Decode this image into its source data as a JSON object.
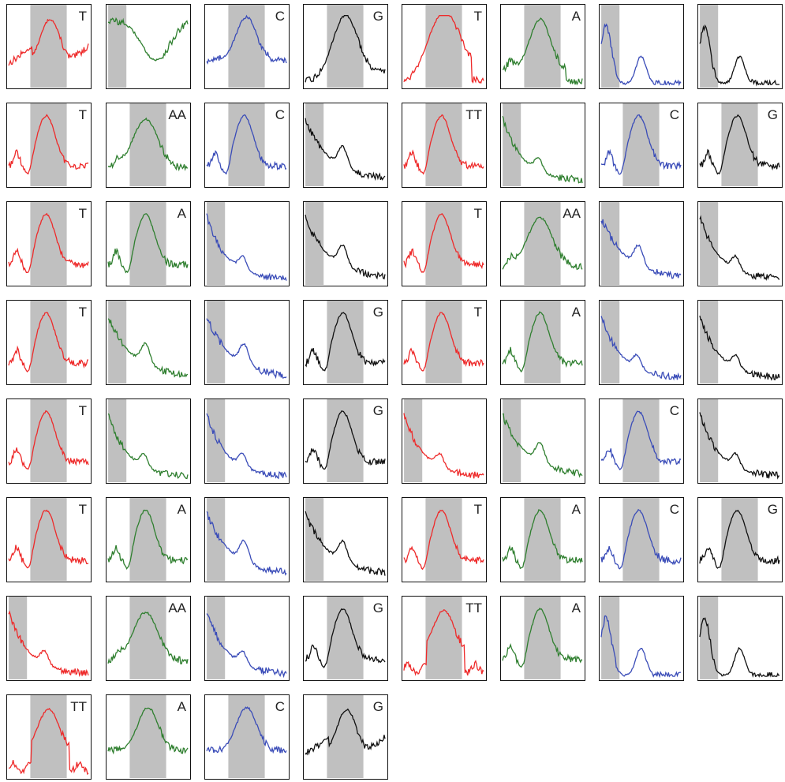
{
  "colors": {
    "T": "#ee2a2a",
    "A": "#2f7f2f",
    "C": "#3a4cb8",
    "G": "#111111",
    "shade": "#c0c0c0"
  },
  "chart_data": {
    "type": "line",
    "panels": [
      {
        "channel": "T",
        "label": "T",
        "shade": [
          0.28,
          0.72
        ],
        "shape": "peak-cut"
      },
      {
        "channel": "A",
        "label": "",
        "shade": [
          0.02,
          0.24
        ],
        "shape": "edge-drop"
      },
      {
        "channel": "C",
        "label": "C",
        "shade": [
          0.28,
          0.72
        ],
        "shape": "peak-clip"
      },
      {
        "channel": "G",
        "label": "G",
        "shade": [
          0.28,
          0.72
        ],
        "shape": "ramp-peak"
      },
      {
        "channel": "T",
        "label": "T",
        "shade": [
          0.28,
          0.72
        ],
        "shape": "ramp-peak-drop"
      },
      {
        "channel": "A",
        "label": "A",
        "shade": [
          0.28,
          0.72
        ],
        "shape": "wide-peak-drop"
      },
      {
        "channel": "C",
        "label": "",
        "shade": [
          0.02,
          0.24
        ],
        "shape": "double-dip"
      },
      {
        "channel": "G",
        "label": "",
        "shade": [
          0.02,
          0.24
        ],
        "shape": "double-dip"
      },
      {
        "channel": "T",
        "label": "T",
        "shade": [
          0.28,
          0.72
        ],
        "shape": "peak"
      },
      {
        "channel": "A",
        "label": "AA",
        "shade": [
          0.28,
          0.72
        ],
        "shape": "wide-peak"
      },
      {
        "channel": "C",
        "label": "C",
        "shade": [
          0.28,
          0.72
        ],
        "shape": "peak"
      },
      {
        "channel": "G",
        "label": "",
        "shade": [
          0.02,
          0.24
        ],
        "shape": "decay"
      },
      {
        "channel": "T",
        "label": "TT",
        "shade": [
          0.28,
          0.72
        ],
        "shape": "peak"
      },
      {
        "channel": "A",
        "label": "",
        "shade": [
          0.02,
          0.24
        ],
        "shape": "decay-flat"
      },
      {
        "channel": "C",
        "label": "C",
        "shade": [
          0.28,
          0.72
        ],
        "shape": "peak"
      },
      {
        "channel": "G",
        "label": "G",
        "shade": [
          0.28,
          0.72
        ],
        "shape": "peak"
      },
      {
        "channel": "T",
        "label": "T",
        "shade": [
          0.28,
          0.72
        ],
        "shape": "peak"
      },
      {
        "channel": "A",
        "label": "A",
        "shade": [
          0.28,
          0.72
        ],
        "shape": "peak"
      },
      {
        "channel": "C",
        "label": "",
        "shade": [
          0.02,
          0.24
        ],
        "shape": "decay-flat"
      },
      {
        "channel": "G",
        "label": "",
        "shade": [
          0.02,
          0.24
        ],
        "shape": "decay"
      },
      {
        "channel": "T",
        "label": "T",
        "shade": [
          0.28,
          0.72
        ],
        "shape": "peak"
      },
      {
        "channel": "A",
        "label": "AA",
        "shade": [
          0.28,
          0.72
        ],
        "shape": "wide-peak"
      },
      {
        "channel": "C",
        "label": "",
        "shade": [
          0.02,
          0.24
        ],
        "shape": "decay"
      },
      {
        "channel": "G",
        "label": "",
        "shade": [
          0.02,
          0.24
        ],
        "shape": "decay-flat"
      },
      {
        "channel": "T",
        "label": "T",
        "shade": [
          0.28,
          0.72
        ],
        "shape": "peak"
      },
      {
        "channel": "A",
        "label": "",
        "shade": [
          0.02,
          0.24
        ],
        "shape": "decay"
      },
      {
        "channel": "C",
        "label": "",
        "shade": [
          0.02,
          0.24
        ],
        "shape": "decay"
      },
      {
        "channel": "G",
        "label": "G",
        "shade": [
          0.28,
          0.72
        ],
        "shape": "peak"
      },
      {
        "channel": "T",
        "label": "T",
        "shade": [
          0.28,
          0.72
        ],
        "shape": "peak"
      },
      {
        "channel": "A",
        "label": "A",
        "shade": [
          0.28,
          0.72
        ],
        "shape": "peak"
      },
      {
        "channel": "C",
        "label": "",
        "shade": [
          0.02,
          0.24
        ],
        "shape": "decay-flat"
      },
      {
        "channel": "G",
        "label": "",
        "shade": [
          0.02,
          0.24
        ],
        "shape": "decay-flat"
      },
      {
        "channel": "T",
        "label": "T",
        "shade": [
          0.28,
          0.72
        ],
        "shape": "peak"
      },
      {
        "channel": "A",
        "label": "",
        "shade": [
          0.02,
          0.24
        ],
        "shape": "decay-flat"
      },
      {
        "channel": "C",
        "label": "",
        "shade": [
          0.02,
          0.24
        ],
        "shape": "decay-flat"
      },
      {
        "channel": "G",
        "label": "G",
        "shade": [
          0.28,
          0.72
        ],
        "shape": "peak"
      },
      {
        "channel": "T",
        "label": "",
        "shade": [
          0.02,
          0.24
        ],
        "shape": "decay-flat"
      },
      {
        "channel": "A",
        "label": "",
        "shade": [
          0.02,
          0.24
        ],
        "shape": "decay"
      },
      {
        "channel": "C",
        "label": "C",
        "shade": [
          0.28,
          0.72
        ],
        "shape": "peak"
      },
      {
        "channel": "G",
        "label": "",
        "shade": [
          0.02,
          0.24
        ],
        "shape": "decay-flat"
      },
      {
        "channel": "T",
        "label": "T",
        "shade": [
          0.28,
          0.72
        ],
        "shape": "peak"
      },
      {
        "channel": "A",
        "label": "A",
        "shade": [
          0.28,
          0.72
        ],
        "shape": "peak"
      },
      {
        "channel": "C",
        "label": "",
        "shade": [
          0.02,
          0.24
        ],
        "shape": "decay"
      },
      {
        "channel": "G",
        "label": "",
        "shade": [
          0.02,
          0.24
        ],
        "shape": "decay"
      },
      {
        "channel": "T",
        "label": "T",
        "shade": [
          0.28,
          0.72
        ],
        "shape": "peak"
      },
      {
        "channel": "A",
        "label": "A",
        "shade": [
          0.28,
          0.72
        ],
        "shape": "peak"
      },
      {
        "channel": "C",
        "label": "C",
        "shade": [
          0.28,
          0.72
        ],
        "shape": "peak"
      },
      {
        "channel": "G",
        "label": "G",
        "shade": [
          0.28,
          0.72
        ],
        "shape": "peak"
      },
      {
        "channel": "T",
        "label": "",
        "shade": [
          0.02,
          0.24
        ],
        "shape": "decay-flat"
      },
      {
        "channel": "A",
        "label": "AA",
        "shade": [
          0.28,
          0.72
        ],
        "shape": "wide-peak"
      },
      {
        "channel": "C",
        "label": "",
        "shade": [
          0.02,
          0.24
        ],
        "shape": "decay-flat"
      },
      {
        "channel": "G",
        "label": "G",
        "shade": [
          0.28,
          0.72
        ],
        "shape": "peak"
      },
      {
        "channel": "T",
        "label": "TT",
        "shade": [
          0.28,
          0.72
        ],
        "shape": "plateau-peak"
      },
      {
        "channel": "A",
        "label": "A",
        "shade": [
          0.28,
          0.72
        ],
        "shape": "peak"
      },
      {
        "channel": "C",
        "label": "",
        "shade": [
          0.02,
          0.24
        ],
        "shape": "double-dip"
      },
      {
        "channel": "G",
        "label": "",
        "shade": [
          0.02,
          0.24
        ],
        "shape": "double-dip"
      },
      {
        "channel": "T",
        "label": "TT",
        "shade": [
          0.28,
          0.72
        ],
        "shape": "plateau-peak"
      },
      {
        "channel": "A",
        "label": "A",
        "shade": [
          0.28,
          0.72
        ],
        "shape": "peak-clip"
      },
      {
        "channel": "C",
        "label": "C",
        "shade": [
          0.28,
          0.72
        ],
        "shape": "peak-clip"
      },
      {
        "channel": "G",
        "label": "G",
        "shade": [
          0.28,
          0.72
        ],
        "shape": "peak-cut"
      }
    ]
  }
}
